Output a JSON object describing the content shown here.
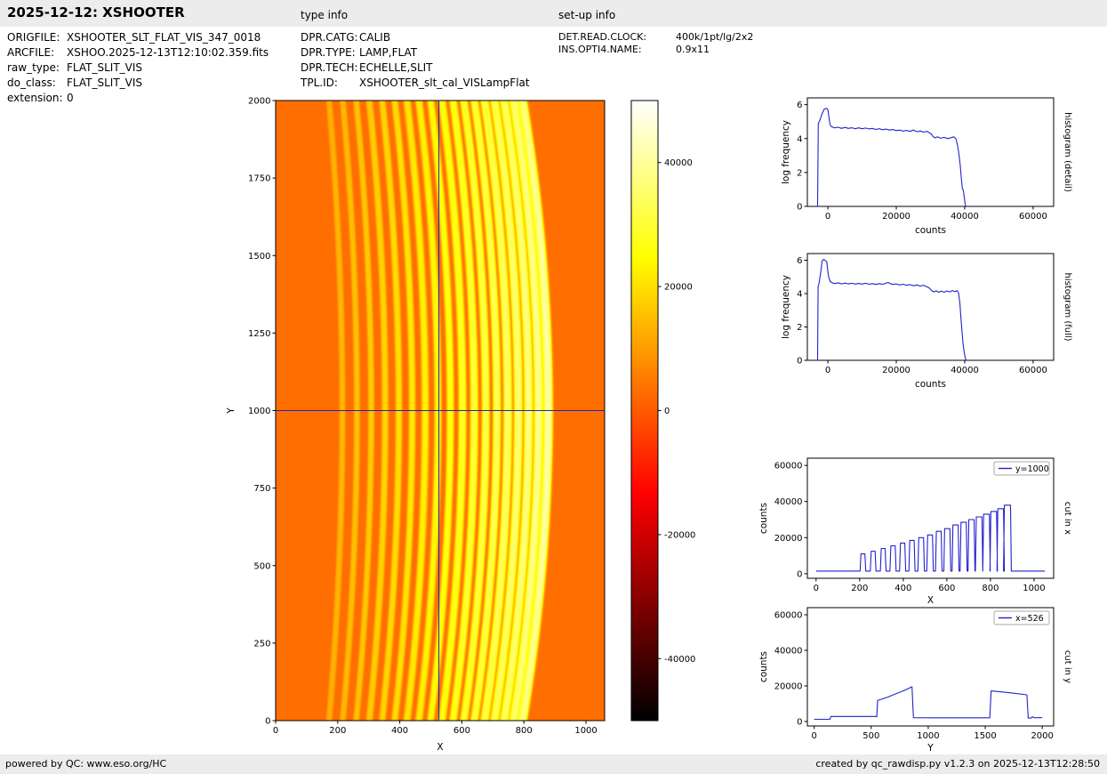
{
  "header": {
    "title": "2025-12-12: XSHOOTER",
    "type_info_label": "type info",
    "setup_info_label": "set-up info"
  },
  "file_info": {
    "rows": [
      {
        "label": "ORIGFILE:",
        "value": "XSHOOTER_SLT_FLAT_VIS_347_0018"
      },
      {
        "label": "ARCFILE:",
        "value": "XSHOO.2025-12-13T12:10:02.359.fits"
      },
      {
        "label": "raw_type:",
        "value": "FLAT_SLIT_VIS"
      },
      {
        "label": "do_class:",
        "value": "FLAT_SLIT_VIS"
      },
      {
        "label": "extension:",
        "value": "0"
      }
    ]
  },
  "type_info": {
    "rows": [
      {
        "label": "DPR.CATG:",
        "value": "CALIB"
      },
      {
        "label": "DPR.TYPE:",
        "value": "LAMP,FLAT"
      },
      {
        "label": "DPR.TECH:",
        "value": "ECHELLE,SLIT"
      },
      {
        "label": "TPL.ID:",
        "value": "XSHOOTER_slt_cal_VISLampFlat"
      }
    ]
  },
  "setup_info": {
    "rows": [
      {
        "label": "DET.READ.CLOCK:",
        "value": "400k/1pt/lg/2x2"
      },
      {
        "label": "INS.OPTI4.NAME:",
        "value": "0.9x11"
      }
    ]
  },
  "footer": {
    "left": "powered by QC: www.eso.org/HC",
    "right": "created by qc_rawdisp.py v1.2.3 on 2025-12-13T12:28:50"
  },
  "colors": {
    "header_bg": "#ececec",
    "plot_line": "#2222cc",
    "crosshair": "#2222bb"
  },
  "chart_data": [
    {
      "id": "raw_image",
      "type": "heatmap",
      "xlabel": "X",
      "ylabel": "Y",
      "xlim": [
        0,
        1060
      ],
      "ylim": [
        0,
        2000
      ],
      "xticks": [
        0,
        200,
        400,
        600,
        800,
        1000
      ],
      "yticks": [
        0,
        250,
        500,
        750,
        1000,
        1250,
        1500,
        1750,
        2000
      ],
      "colormap": "hot",
      "value_range": [
        -50000,
        50000
      ],
      "colorbar_ticks": [
        40000,
        20000,
        0,
        -20000,
        -40000
      ],
      "background_value": 3000,
      "crosshair": {
        "x": 526,
        "y": 1000,
        "color": "#2222bb"
      },
      "curvature": {
        "base": 30,
        "slope": 0.06
      },
      "orders": [
        {
          "x": 215,
          "w": 10,
          "peak": 11000
        },
        {
          "x": 262,
          "w": 10,
          "peak": 12500
        },
        {
          "x": 308,
          "w": 10,
          "peak": 14000
        },
        {
          "x": 353,
          "w": 11,
          "peak": 15500
        },
        {
          "x": 397,
          "w": 11,
          "peak": 17000
        },
        {
          "x": 440,
          "w": 11,
          "peak": 18500
        },
        {
          "x": 482,
          "w": 12,
          "peak": 20000
        },
        {
          "x": 523,
          "w": 12,
          "peak": 21500
        },
        {
          "x": 563,
          "w": 12,
          "peak": 23500
        },
        {
          "x": 602,
          "w": 13,
          "peak": 25000
        },
        {
          "x": 640,
          "w": 13,
          "peak": 27000
        },
        {
          "x": 677,
          "w": 13,
          "peak": 28500
        },
        {
          "x": 713,
          "w": 13,
          "peak": 30000
        },
        {
          "x": 748,
          "w": 14,
          "peak": 31500
        },
        {
          "x": 782,
          "w": 14,
          "peak": 33000
        },
        {
          "x": 815,
          "w": 14,
          "peak": 34500
        },
        {
          "x": 847,
          "w": 14,
          "peak": 36000
        },
        {
          "x": 878,
          "w": 15,
          "peak": 38000
        }
      ]
    },
    {
      "id": "histogram_detail",
      "type": "line",
      "xlabel": "counts",
      "ylabel": "log frequency",
      "right_label": "histogram (detail)",
      "xlim": [
        -6000,
        66000
      ],
      "ylim": [
        0,
        6.4
      ],
      "xticks": [
        0,
        20000,
        40000,
        60000
      ],
      "yticks": [
        0,
        2,
        4,
        6
      ],
      "line_color": "#2222cc",
      "points": [
        [
          -3000,
          0
        ],
        [
          -2800,
          4.9
        ],
        [
          -2400,
          5.05
        ],
        [
          -2000,
          5.3
        ],
        [
          -1500,
          5.55
        ],
        [
          -1000,
          5.75
        ],
        [
          -400,
          5.78
        ],
        [
          0,
          5.7
        ],
        [
          300,
          5.3
        ],
        [
          600,
          4.85
        ],
        [
          1000,
          4.7
        ],
        [
          2000,
          4.63
        ],
        [
          3000,
          4.67
        ],
        [
          4000,
          4.6
        ],
        [
          5000,
          4.66
        ],
        [
          6000,
          4.6
        ],
        [
          7000,
          4.64
        ],
        [
          8000,
          4.58
        ],
        [
          9000,
          4.63
        ],
        [
          10000,
          4.58
        ],
        [
          11000,
          4.62
        ],
        [
          12000,
          4.57
        ],
        [
          13000,
          4.6
        ],
        [
          14000,
          4.54
        ],
        [
          15000,
          4.58
        ],
        [
          16000,
          4.52
        ],
        [
          17000,
          4.56
        ],
        [
          18000,
          4.5
        ],
        [
          19000,
          4.53
        ],
        [
          20000,
          4.47
        ],
        [
          21000,
          4.5
        ],
        [
          22000,
          4.44
        ],
        [
          23000,
          4.48
        ],
        [
          24000,
          4.42
        ],
        [
          25000,
          4.5
        ],
        [
          25600,
          4.44
        ],
        [
          26200,
          4.4
        ],
        [
          27000,
          4.45
        ],
        [
          28000,
          4.38
        ],
        [
          29000,
          4.42
        ],
        [
          29600,
          4.35
        ],
        [
          30200,
          4.28
        ],
        [
          30800,
          4.1
        ],
        [
          31400,
          4.04
        ],
        [
          32000,
          4.1
        ],
        [
          33000,
          4.02
        ],
        [
          34000,
          4.07
        ],
        [
          35000,
          4.0
        ],
        [
          36000,
          4.05
        ],
        [
          36800,
          4.1
        ],
        [
          37400,
          4.0
        ],
        [
          37900,
          3.6
        ],
        [
          38300,
          3.1
        ],
        [
          38700,
          2.4
        ],
        [
          39000,
          1.7
        ],
        [
          39300,
          1.05
        ],
        [
          39600,
          0.95
        ],
        [
          39900,
          0.5
        ],
        [
          40100,
          0.15
        ],
        [
          40300,
          0
        ]
      ]
    },
    {
      "id": "histogram_full",
      "type": "line",
      "xlabel": "counts",
      "ylabel": "log frequency",
      "right_label": "histogram (full)",
      "xlim": [
        -6000,
        66000
      ],
      "ylim": [
        0,
        6.4
      ],
      "xticks": [
        0,
        20000,
        40000,
        60000
      ],
      "yticks": [
        0,
        2,
        4,
        6
      ],
      "line_color": "#2222cc",
      "points": [
        [
          -3000,
          0
        ],
        [
          -2850,
          4.45
        ],
        [
          -2600,
          4.6
        ],
        [
          -2300,
          5.0
        ],
        [
          -2000,
          5.4
        ],
        [
          -1700,
          5.95
        ],
        [
          -1300,
          6.05
        ],
        [
          -800,
          6.0
        ],
        [
          -300,
          5.9
        ],
        [
          0,
          5.3
        ],
        [
          300,
          4.95
        ],
        [
          700,
          4.72
        ],
        [
          1200,
          4.65
        ],
        [
          2000,
          4.6
        ],
        [
          3000,
          4.65
        ],
        [
          4000,
          4.58
        ],
        [
          5000,
          4.63
        ],
        [
          6000,
          4.58
        ],
        [
          7000,
          4.62
        ],
        [
          8000,
          4.57
        ],
        [
          9000,
          4.61
        ],
        [
          10000,
          4.57
        ],
        [
          11000,
          4.62
        ],
        [
          12000,
          4.56
        ],
        [
          13000,
          4.6
        ],
        [
          14000,
          4.55
        ],
        [
          15000,
          4.6
        ],
        [
          16000,
          4.56
        ],
        [
          17000,
          4.62
        ],
        [
          17600,
          4.67
        ],
        [
          18200,
          4.6
        ],
        [
          19000,
          4.55
        ],
        [
          20000,
          4.58
        ],
        [
          21000,
          4.52
        ],
        [
          22000,
          4.56
        ],
        [
          23000,
          4.5
        ],
        [
          24000,
          4.54
        ],
        [
          25000,
          4.47
        ],
        [
          26000,
          4.52
        ],
        [
          27000,
          4.45
        ],
        [
          28000,
          4.5
        ],
        [
          29000,
          4.4
        ],
        [
          29700,
          4.33
        ],
        [
          30300,
          4.18
        ],
        [
          31000,
          4.1
        ],
        [
          31700,
          4.17
        ],
        [
          32400,
          4.08
        ],
        [
          33200,
          4.15
        ],
        [
          34000,
          4.08
        ],
        [
          34800,
          4.16
        ],
        [
          35600,
          4.1
        ],
        [
          36400,
          4.18
        ],
        [
          37200,
          4.12
        ],
        [
          37800,
          4.18
        ],
        [
          38200,
          4.05
        ],
        [
          38600,
          3.4
        ],
        [
          38900,
          2.55
        ],
        [
          39200,
          1.75
        ],
        [
          39500,
          1.05
        ],
        [
          39800,
          0.55
        ],
        [
          40100,
          0.2
        ],
        [
          40400,
          0
        ]
      ]
    },
    {
      "id": "cut_in_x",
      "type": "line",
      "xlabel": "X",
      "ylabel": "counts",
      "right_label": "cut in x",
      "legend": "y=1000",
      "xlim": [
        -40,
        1090
      ],
      "ylim": [
        -2500,
        64000
      ],
      "xticks": [
        0,
        200,
        400,
        600,
        800,
        1000
      ],
      "yticks": [
        0,
        20000,
        40000,
        60000
      ],
      "line_color": "#2222cc",
      "baseline": 1500,
      "points_source": "orders"
    },
    {
      "id": "cut_in_y",
      "type": "line",
      "xlabel": "Y",
      "ylabel": "counts",
      "right_label": "cut in y",
      "legend": "x=526",
      "xlim": [
        -60,
        2100
      ],
      "ylim": [
        -2500,
        64000
      ],
      "xticks": [
        0,
        500,
        1000,
        1500,
        2000
      ],
      "yticks": [
        0,
        20000,
        40000,
        60000
      ],
      "line_color": "#2222cc",
      "points": [
        [
          0,
          1250
        ],
        [
          138,
          1250
        ],
        [
          146,
          2850
        ],
        [
          540,
          2850
        ],
        [
          548,
          2600
        ],
        [
          556,
          11800
        ],
        [
          650,
          13800
        ],
        [
          700,
          15200
        ],
        [
          780,
          17200
        ],
        [
          858,
          19500
        ],
        [
          870,
          2150
        ],
        [
          1000,
          2100
        ],
        [
          1540,
          2100
        ],
        [
          1552,
          17200
        ],
        [
          1650,
          16600
        ],
        [
          1750,
          15900
        ],
        [
          1865,
          15000
        ],
        [
          1877,
          1950
        ],
        [
          1902,
          1950
        ],
        [
          1914,
          2700
        ],
        [
          1926,
          2150
        ],
        [
          2000,
          2150
        ]
      ]
    }
  ]
}
